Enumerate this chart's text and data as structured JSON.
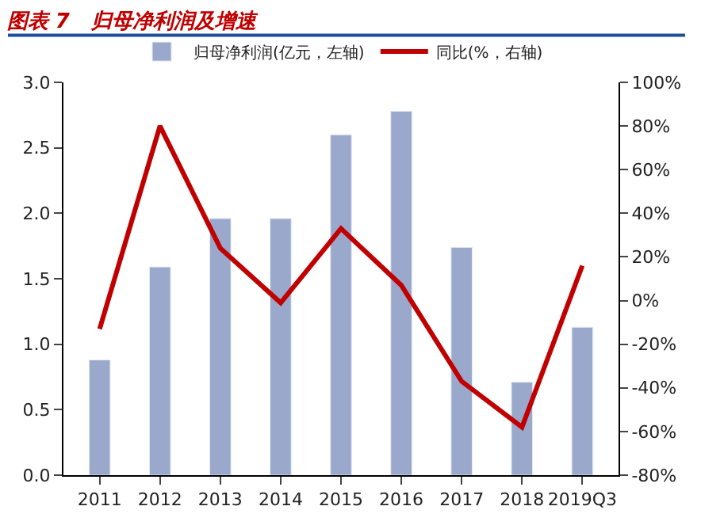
{
  "chart_data": {
    "type": "bar",
    "title": "图表 7   归母净利润及增速",
    "categories": [
      "2011",
      "2012",
      "2013",
      "2014",
      "2015",
      "2016",
      "2017",
      "2018",
      "2019Q3"
    ],
    "series": [
      {
        "name": "归母净利润(亿元，左轴)",
        "color": "#9aa8cc",
        "values": [
          0.88,
          1.59,
          1.96,
          1.96,
          2.6,
          2.78,
          1.74,
          0.71,
          1.13
        ]
      },
      {
        "name": "同比(%，右轴)",
        "type": "line",
        "axis": "y2",
        "color": "#c00000",
        "values": [
          -13,
          80,
          24,
          -1,
          33,
          7,
          -37,
          -58,
          16
        ]
      }
    ],
    "ylim": [
      0,
      3
    ],
    "yticks": [
      {
        "value": 0,
        "label": "0.0"
      },
      {
        "value": 0.5,
        "label": "0.5"
      },
      {
        "value": 1,
        "label": "1.0"
      },
      {
        "value": 1.5,
        "label": "1.5"
      },
      {
        "value": 2,
        "label": "2.0"
      },
      {
        "value": 2.5,
        "label": "2.5"
      },
      {
        "value": 3,
        "label": "3.0"
      }
    ],
    "y2lim": [
      -80,
      100
    ],
    "y2ticks": [
      {
        "value": -80,
        "label": "-80%"
      },
      {
        "value": -60,
        "label": "-60%"
      },
      {
        "value": -40,
        "label": "-40%"
      },
      {
        "value": -20,
        "label": "-20%"
      },
      {
        "value": 0,
        "label": "0%"
      },
      {
        "value": 20,
        "label": "20%"
      },
      {
        "value": 40,
        "label": "40%"
      },
      {
        "value": 60,
        "label": "60%"
      },
      {
        "value": 80,
        "label": "80%"
      },
      {
        "value": 100,
        "label": "100%"
      }
    ],
    "legend": "top",
    "marker": "none",
    "line_style": "solid"
  }
}
